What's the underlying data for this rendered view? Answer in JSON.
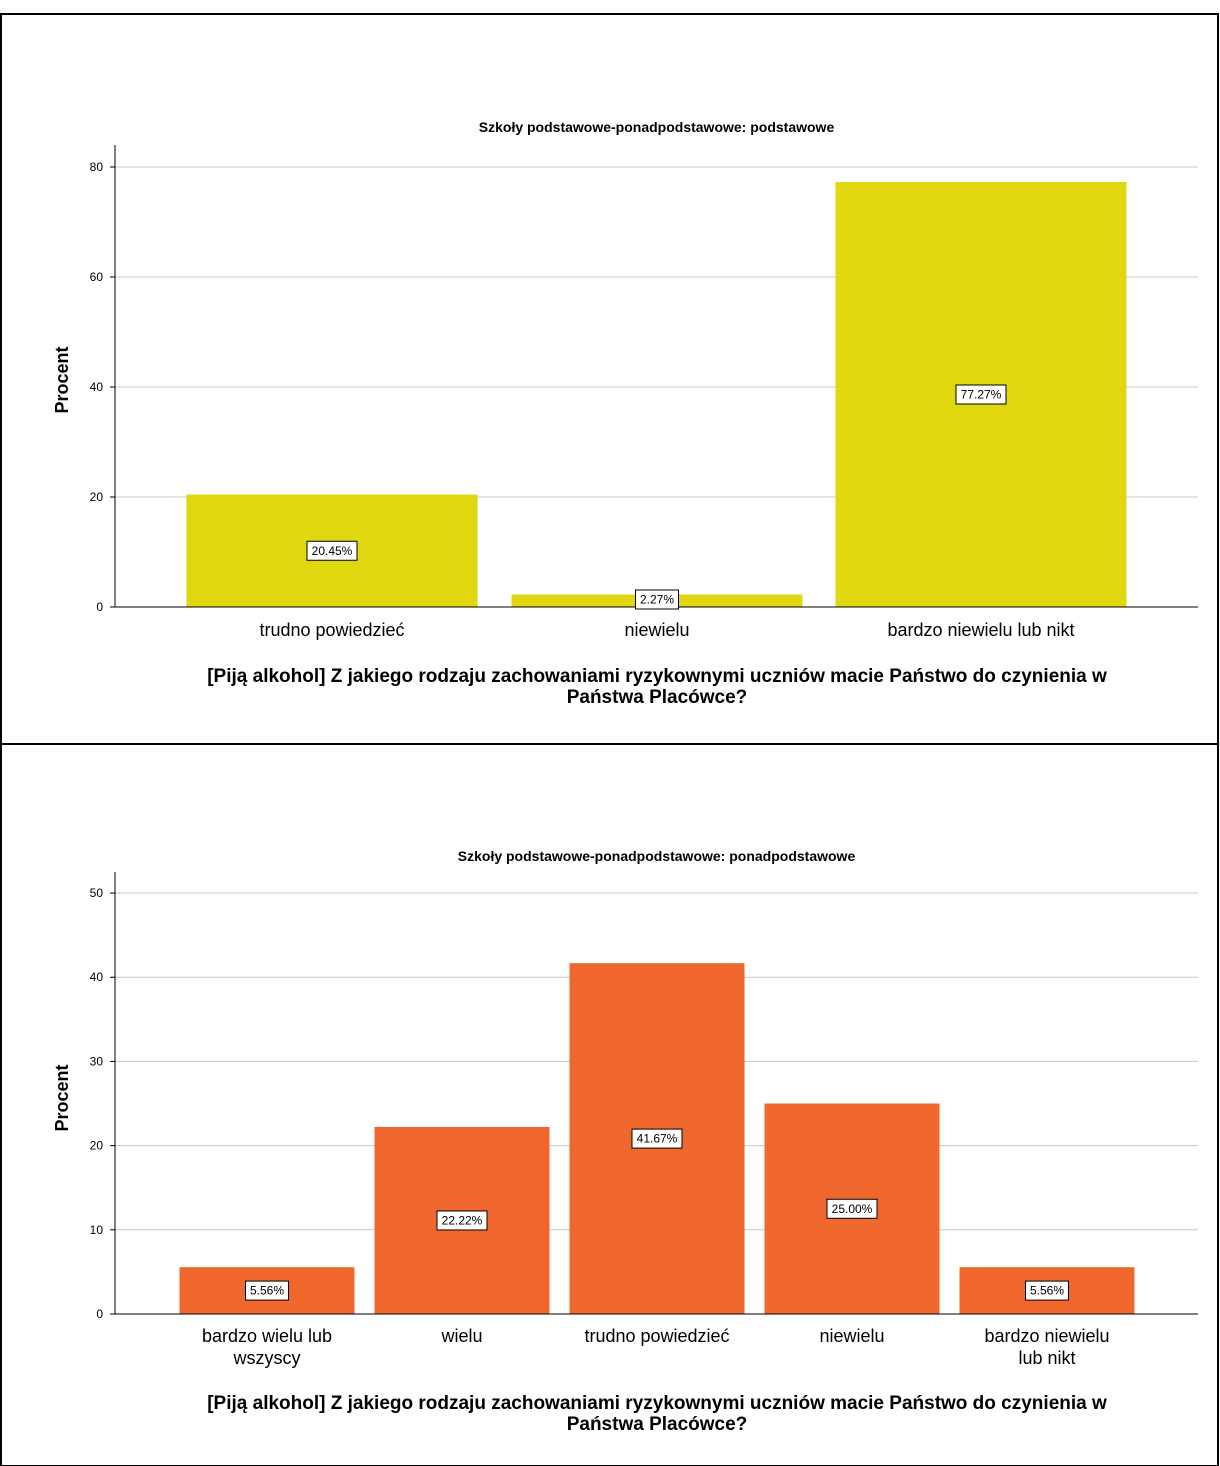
{
  "colors": {
    "chart1_bar": "#E1D70F",
    "chart2_bar": "#F0672D",
    "grid": "#C8C8C8",
    "axis": "#000000",
    "border": "#000000"
  },
  "chart_data": [
    {
      "type": "bar",
      "title": "Szkoły podstawowe-ponadpodstawowe: podstawowe",
      "xlabel": "[Piją alkohol] Z jakiego rodzaju zachowaniami ryzykownymi uczniów macie Państwo do czynienia w Państwa Placówce?",
      "ylabel": "Procent",
      "categories": [
        "trudno powiedzieć",
        "niewielu",
        "bardzo niewielu lub nikt"
      ],
      "values": [
        20.45,
        2.27,
        77.27
      ],
      "data_labels": [
        "20.45%",
        "2.27%",
        "77.27%"
      ],
      "ylim": [
        0,
        84
      ],
      "yticks": [
        0,
        20,
        40,
        60,
        80
      ],
      "grid": true
    },
    {
      "type": "bar",
      "title": "Szkoły podstawowe-ponadpodstawowe: ponadpodstawowe",
      "xlabel": "[Piją alkohol] Z jakiego rodzaju zachowaniami ryzykownymi uczniów macie Państwo do czynienia w Państwa Placówce?",
      "ylabel": "Procent",
      "categories": [
        "bardzo wielu lub wszyscy",
        "wielu",
        "trudno powiedzieć",
        "niewielu",
        "bardzo niewielu lub nikt"
      ],
      "values": [
        5.56,
        22.22,
        41.67,
        25.0,
        5.56
      ],
      "data_labels": [
        "5.56%",
        "22.22%",
        "41.67%",
        "25.00%",
        "5.56%"
      ],
      "ylim": [
        0,
        52.5
      ],
      "yticks": [
        0,
        10,
        20,
        30,
        40,
        50
      ],
      "grid": true
    }
  ]
}
